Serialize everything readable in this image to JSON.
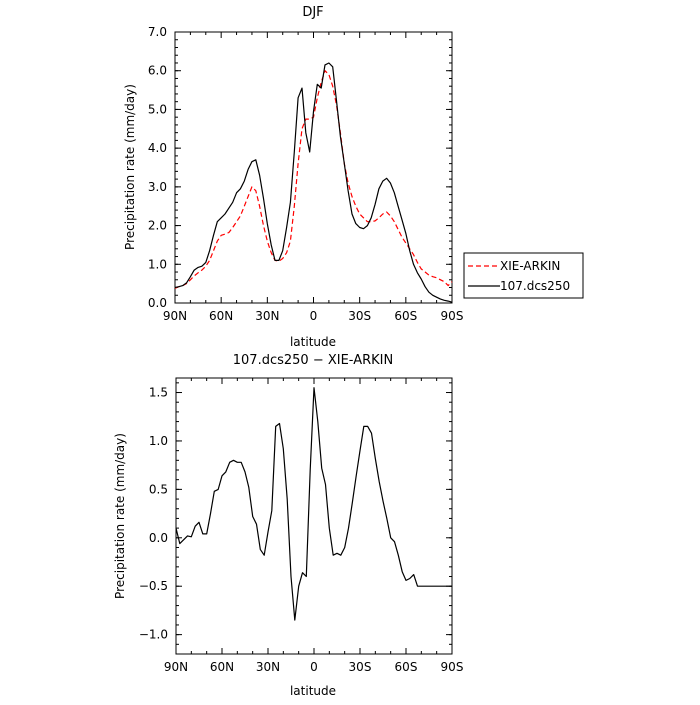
{
  "chart_data": [
    {
      "type": "line",
      "title": "DJF",
      "xlabel": "latitude",
      "ylabel": "Precipitation rate (mm/day)",
      "xlim": [
        -90,
        90
      ],
      "ylim": [
        0,
        7
      ],
      "x_ticks": [
        {
          "v": -90,
          "label": "90N"
        },
        {
          "v": -60,
          "label": "60N"
        },
        {
          "v": -30,
          "label": "30N"
        },
        {
          "v": 0,
          "label": "0"
        },
        {
          "v": 30,
          "label": "30S"
        },
        {
          "v": 60,
          "label": "60S"
        },
        {
          "v": 90,
          "label": "90S"
        }
      ],
      "y_ticks": [
        {
          "v": 0,
          "label": "0.0"
        },
        {
          "v": 1,
          "label": "1.0"
        },
        {
          "v": 2,
          "label": "2.0"
        },
        {
          "v": 3,
          "label": "3.0"
        },
        {
          "v": 4,
          "label": "4.0"
        },
        {
          "v": 5,
          "label": "5.0"
        },
        {
          "v": 6,
          "label": "6.0"
        },
        {
          "v": 7,
          "label": "7.0"
        }
      ],
      "legend": {
        "position": "right"
      },
      "series": [
        {
          "name": "XIE-ARKIN",
          "color": "#ff0000",
          "dash": "dashed",
          "x": [
            -90,
            -87.5,
            -85,
            -82.5,
            -80,
            -77.5,
            -75,
            -72.5,
            -70,
            -67.5,
            -65,
            -62.5,
            -60,
            -57.5,
            -55,
            -52.5,
            -50,
            -47.5,
            -45,
            -42.5,
            -40,
            -37.5,
            -35,
            -32.5,
            -30,
            -27.5,
            -25,
            -22.5,
            -20,
            -17.5,
            -15,
            -12.5,
            -10,
            -7.5,
            -5,
            -2.5,
            0,
            2.5,
            5,
            7.5,
            10,
            12.5,
            15,
            17.5,
            20,
            22.5,
            25,
            27.5,
            30,
            32.5,
            35,
            37.5,
            40,
            42.5,
            45,
            47.5,
            50,
            52.5,
            55,
            57.5,
            60,
            62.5,
            65,
            67.5,
            70,
            72.5,
            75,
            77.5,
            80,
            82.5,
            85,
            87.5,
            90
          ],
          "y": [
            0.38,
            0.42,
            0.45,
            0.5,
            0.6,
            0.7,
            0.78,
            0.85,
            0.95,
            1.1,
            1.35,
            1.6,
            1.75,
            1.78,
            1.82,
            1.95,
            2.1,
            2.25,
            2.5,
            2.75,
            3.0,
            2.9,
            2.5,
            2.0,
            1.6,
            1.3,
            1.1,
            1.08,
            1.15,
            1.3,
            1.6,
            2.5,
            3.6,
            4.5,
            4.75,
            4.75,
            4.8,
            5.3,
            5.7,
            6.0,
            5.9,
            5.6,
            5.1,
            4.4,
            3.6,
            3.1,
            2.75,
            2.5,
            2.3,
            2.2,
            2.1,
            2.1,
            2.12,
            2.2,
            2.3,
            2.35,
            2.25,
            2.1,
            1.9,
            1.7,
            1.55,
            1.4,
            1.25,
            1.05,
            0.88,
            0.8,
            0.72,
            0.68,
            0.65,
            0.6,
            0.55,
            0.45,
            0.55
          ]
        },
        {
          "name": "107.dcs250",
          "color": "#000000",
          "dash": "solid",
          "x": [
            -90,
            -87.5,
            -85,
            -82.5,
            -80,
            -77.5,
            -75,
            -72.5,
            -70,
            -67.5,
            -65,
            -62.5,
            -60,
            -57.5,
            -55,
            -52.5,
            -50,
            -47.5,
            -45,
            -42.5,
            -40,
            -37.5,
            -35,
            -32.5,
            -30,
            -27.5,
            -25,
            -22.5,
            -20,
            -17.5,
            -15,
            -12.5,
            -10,
            -7.5,
            -5,
            -2.5,
            0,
            2.5,
            5,
            7.5,
            10,
            12.5,
            15,
            17.5,
            20,
            22.5,
            25,
            27.5,
            30,
            32.5,
            35,
            37.5,
            40,
            42.5,
            45,
            47.5,
            50,
            52.5,
            55,
            57.5,
            60,
            62.5,
            65,
            67.5,
            70,
            72.5,
            75,
            77.5,
            80,
            82.5,
            85,
            87.5,
            90
          ],
          "y": [
            0.4,
            0.42,
            0.45,
            0.52,
            0.68,
            0.85,
            0.92,
            0.95,
            1.05,
            1.35,
            1.75,
            2.1,
            2.2,
            2.3,
            2.45,
            2.6,
            2.85,
            2.95,
            3.15,
            3.45,
            3.65,
            3.7,
            3.3,
            2.7,
            2.05,
            1.5,
            1.1,
            1.1,
            1.35,
            1.95,
            2.6,
            3.9,
            5.3,
            5.55,
            4.4,
            3.9,
            4.95,
            5.65,
            5.55,
            6.15,
            6.2,
            6.1,
            5.2,
            4.3,
            3.6,
            2.9,
            2.3,
            2.05,
            1.95,
            1.92,
            2.0,
            2.2,
            2.55,
            2.95,
            3.15,
            3.22,
            3.1,
            2.85,
            2.5,
            2.15,
            1.8,
            1.35,
            1.0,
            0.78,
            0.62,
            0.42,
            0.28,
            0.2,
            0.15,
            0.1,
            0.07,
            0.05,
            0.02
          ]
        }
      ]
    },
    {
      "type": "line",
      "title": "107.dcs250 − XIE-ARKIN",
      "xlabel": "latitude",
      "ylabel": "Precipitation rate (mm/day)",
      "xlim": [
        -90,
        90
      ],
      "ylim": [
        -1.2,
        1.65
      ],
      "x_ticks": [
        {
          "v": -90,
          "label": "90N"
        },
        {
          "v": -60,
          "label": "60N"
        },
        {
          "v": -30,
          "label": "30N"
        },
        {
          "v": 0,
          "label": "0"
        },
        {
          "v": 30,
          "label": "30S"
        },
        {
          "v": 60,
          "label": "60S"
        },
        {
          "v": 90,
          "label": "90S"
        }
      ],
      "y_ticks": [
        {
          "v": -1.0,
          "label": "−1.0"
        },
        {
          "v": -0.5,
          "label": "−0.5"
        },
        {
          "v": 0.0,
          "label": "0.0"
        },
        {
          "v": 0.5,
          "label": "0.5"
        },
        {
          "v": 1.0,
          "label": "1.0"
        },
        {
          "v": 1.5,
          "label": "1.5"
        }
      ],
      "series": [
        {
          "color": "#000000",
          "dash": "solid",
          "x": [
            -90,
            -87.5,
            -85,
            -82.5,
            -80,
            -77.5,
            -75,
            -72.5,
            -70,
            -67.5,
            -65,
            -62.5,
            -60,
            -57.5,
            -55,
            -52.5,
            -50,
            -47.5,
            -45,
            -42.5,
            -40,
            -37.5,
            -35,
            -32.5,
            -30,
            -27.5,
            -25,
            -22.5,
            -20,
            -17.5,
            -15,
            -12.5,
            -10,
            -7.5,
            -5,
            -2.5,
            0,
            2.5,
            5,
            7.5,
            10,
            12.5,
            15,
            17.5,
            20,
            22.5,
            25,
            27.5,
            30,
            32.5,
            35,
            37.5,
            40,
            42.5,
            45,
            47.5,
            50,
            52.5,
            55,
            57.5,
            60,
            62.5,
            65,
            67.5,
            70,
            72.5,
            75,
            77.5,
            80,
            82.5,
            85,
            87.5,
            90
          ],
          "y": [
            0.1,
            -0.06,
            -0.02,
            0.02,
            0.01,
            0.12,
            0.16,
            0.04,
            0.04,
            0.25,
            0.48,
            0.5,
            0.64,
            0.68,
            0.78,
            0.8,
            0.78,
            0.78,
            0.68,
            0.52,
            0.22,
            0.14,
            -0.12,
            -0.18,
            0.06,
            0.28,
            1.15,
            1.18,
            0.92,
            0.4,
            -0.4,
            -0.85,
            -0.5,
            -0.36,
            -0.4,
            0.7,
            1.55,
            1.2,
            0.72,
            0.55,
            0.1,
            -0.18,
            -0.16,
            -0.18,
            -0.1,
            0.1,
            0.36,
            0.64,
            0.9,
            1.15,
            1.15,
            1.08,
            0.82,
            0.58,
            0.38,
            0.2,
            0.0,
            -0.04,
            -0.18,
            -0.35,
            -0.44,
            -0.42,
            -0.38,
            -0.5,
            -0.5,
            -0.5,
            -0.5,
            -0.5,
            -0.5,
            -0.5,
            -0.5,
            -0.5,
            -0.5
          ]
        }
      ]
    }
  ]
}
